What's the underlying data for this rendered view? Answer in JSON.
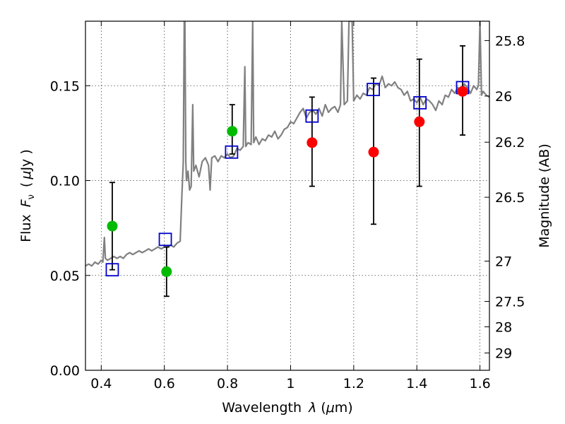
{
  "chart_data": {
    "type": "scatter",
    "xlabel_prefix": "Wavelength",
    "xlabel_symbol": "λ",
    "xlabel_units_open": "(",
    "xlabel_units_mu": "μ",
    "xlabel_units_rest": "m)",
    "ylabel_prefix": "Flux",
    "ylabel_symbol": "F",
    "ylabel_subscript": "ν",
    "ylabel_units_open": "(",
    "ylabel_units_mu": "μ",
    "ylabel_units_rest": "Jy )",
    "y2label": "Magnitude (AB)",
    "xlim": [
      0.35,
      1.63
    ],
    "ylim": [
      0.0,
      0.184
    ],
    "x_ticks": [
      0.4,
      0.6,
      0.8,
      1.0,
      1.2,
      1.4,
      1.6
    ],
    "x_tick_labels": [
      "0.4",
      "0.6",
      "0.8",
      "1",
      "1.2",
      "1.4",
      "1.6"
    ],
    "y_ticks": [
      0.0,
      0.05,
      0.1,
      0.15
    ],
    "y_tick_labels": [
      "0.00",
      "0.05",
      "0.10",
      "0.15"
    ],
    "mag_ticks": [
      25.8,
      26,
      26.2,
      26.5,
      27,
      27.5,
      28,
      29
    ],
    "mag_tick_labels": [
      "25.8",
      "26",
      "26.2",
      "26.5",
      "27",
      "27.5",
      "28",
      "29"
    ],
    "colors": {
      "spectrum": "#808080",
      "green": "#00bb00",
      "red": "#ff0000",
      "model_box": "#0000cc",
      "errorbar": "#000000"
    },
    "spectrum": [
      [
        0.35,
        0.055
      ],
      [
        0.36,
        0.056
      ],
      [
        0.37,
        0.055
      ],
      [
        0.38,
        0.057
      ],
      [
        0.39,
        0.056
      ],
      [
        0.4,
        0.058
      ],
      [
        0.405,
        0.057
      ],
      [
        0.41,
        0.07
      ],
      [
        0.413,
        0.059
      ],
      [
        0.42,
        0.058
      ],
      [
        0.43,
        0.059
      ],
      [
        0.44,
        0.06
      ],
      [
        0.45,
        0.059
      ],
      [
        0.46,
        0.06
      ],
      [
        0.47,
        0.059
      ],
      [
        0.48,
        0.061
      ],
      [
        0.49,
        0.062
      ],
      [
        0.5,
        0.061
      ],
      [
        0.51,
        0.062
      ],
      [
        0.52,
        0.063
      ],
      [
        0.53,
        0.062
      ],
      [
        0.54,
        0.063
      ],
      [
        0.55,
        0.064
      ],
      [
        0.56,
        0.063
      ],
      [
        0.57,
        0.064
      ],
      [
        0.58,
        0.065
      ],
      [
        0.59,
        0.064
      ],
      [
        0.6,
        0.065
      ],
      [
        0.61,
        0.065
      ],
      [
        0.62,
        0.066
      ],
      [
        0.63,
        0.065
      ],
      [
        0.64,
        0.067
      ],
      [
        0.65,
        0.068
      ],
      [
        0.655,
        0.09
      ],
      [
        0.66,
        0.11
      ],
      [
        0.663,
        0.184
      ],
      [
        0.665,
        0.184
      ],
      [
        0.668,
        0.11
      ],
      [
        0.67,
        0.1
      ],
      [
        0.675,
        0.105
      ],
      [
        0.68,
        0.095
      ],
      [
        0.685,
        0.097
      ],
      [
        0.69,
        0.14
      ],
      [
        0.693,
        0.105
      ],
      [
        0.7,
        0.108
      ],
      [
        0.71,
        0.102
      ],
      [
        0.72,
        0.11
      ],
      [
        0.73,
        0.112
      ],
      [
        0.74,
        0.108
      ],
      [
        0.745,
        0.095
      ],
      [
        0.75,
        0.112
      ],
      [
        0.76,
        0.113
      ],
      [
        0.77,
        0.11
      ],
      [
        0.78,
        0.113
      ],
      [
        0.79,
        0.112
      ],
      [
        0.8,
        0.114
      ],
      [
        0.81,
        0.112
      ],
      [
        0.82,
        0.113
      ],
      [
        0.83,
        0.117
      ],
      [
        0.84,
        0.116
      ],
      [
        0.85,
        0.118
      ],
      [
        0.855,
        0.16
      ],
      [
        0.858,
        0.118
      ],
      [
        0.865,
        0.12
      ],
      [
        0.875,
        0.119
      ],
      [
        0.88,
        0.184
      ],
      [
        0.883,
        0.12
      ],
      [
        0.89,
        0.123
      ],
      [
        0.9,
        0.119
      ],
      [
        0.91,
        0.122
      ],
      [
        0.92,
        0.121
      ],
      [
        0.93,
        0.124
      ],
      [
        0.94,
        0.123
      ],
      [
        0.95,
        0.126
      ],
      [
        0.96,
        0.122
      ],
      [
        0.97,
        0.124
      ],
      [
        0.98,
        0.127
      ],
      [
        0.99,
        0.128
      ],
      [
        1.0,
        0.131
      ],
      [
        1.01,
        0.13
      ],
      [
        1.02,
        0.133
      ],
      [
        1.03,
        0.136
      ],
      [
        1.04,
        0.138
      ],
      [
        1.05,
        0.133
      ],
      [
        1.06,
        0.136
      ],
      [
        1.07,
        0.137
      ],
      [
        1.08,
        0.135
      ],
      [
        1.09,
        0.138
      ],
      [
        1.1,
        0.134
      ],
      [
        1.11,
        0.14
      ],
      [
        1.12,
        0.136
      ],
      [
        1.13,
        0.138
      ],
      [
        1.14,
        0.139
      ],
      [
        1.15,
        0.136
      ],
      [
        1.158,
        0.14
      ],
      [
        1.162,
        0.184
      ],
      [
        1.17,
        0.14
      ],
      [
        1.18,
        0.142
      ],
      [
        1.185,
        0.184
      ],
      [
        1.195,
        0.184
      ],
      [
        1.2,
        0.142
      ],
      [
        1.21,
        0.145
      ],
      [
        1.22,
        0.143
      ],
      [
        1.23,
        0.146
      ],
      [
        1.24,
        0.145
      ],
      [
        1.25,
        0.149
      ],
      [
        1.26,
        0.148
      ],
      [
        1.27,
        0.151
      ],
      [
        1.28,
        0.15
      ],
      [
        1.29,
        0.155
      ],
      [
        1.3,
        0.149
      ],
      [
        1.31,
        0.151
      ],
      [
        1.32,
        0.15
      ],
      [
        1.33,
        0.152
      ],
      [
        1.34,
        0.149
      ],
      [
        1.35,
        0.148
      ],
      [
        1.36,
        0.145
      ],
      [
        1.37,
        0.147
      ],
      [
        1.38,
        0.142
      ],
      [
        1.39,
        0.143
      ],
      [
        1.4,
        0.141
      ],
      [
        1.41,
        0.144
      ],
      [
        1.42,
        0.14
      ],
      [
        1.43,
        0.143
      ],
      [
        1.44,
        0.142
      ],
      [
        1.45,
        0.14
      ],
      [
        1.46,
        0.137
      ],
      [
        1.47,
        0.142
      ],
      [
        1.48,
        0.14
      ],
      [
        1.49,
        0.145
      ],
      [
        1.5,
        0.144
      ],
      [
        1.51,
        0.148
      ],
      [
        1.52,
        0.146
      ],
      [
        1.53,
        0.149
      ],
      [
        1.54,
        0.146
      ],
      [
        1.55,
        0.151
      ],
      [
        1.56,
        0.149
      ],
      [
        1.57,
        0.146
      ],
      [
        1.58,
        0.15
      ],
      [
        1.59,
        0.148
      ],
      [
        1.595,
        0.15
      ],
      [
        1.6,
        0.184
      ],
      [
        1.605,
        0.145
      ],
      [
        1.61,
        0.147
      ],
      [
        1.62,
        0.145
      ],
      [
        1.63,
        0.144
      ]
    ],
    "green_points": [
      {
        "x": 0.435,
        "y": 0.076
      },
      {
        "x": 0.607,
        "y": 0.052
      },
      {
        "x": 0.815,
        "y": 0.126
      }
    ],
    "red_points": [
      {
        "x": 1.068,
        "y": 0.12
      },
      {
        "x": 1.263,
        "y": 0.115
      },
      {
        "x": 1.408,
        "y": 0.131
      },
      {
        "x": 1.545,
        "y": 0.147
      }
    ],
    "model_boxes": [
      {
        "x": 0.435,
        "y": 0.053
      },
      {
        "x": 0.603,
        "y": 0.069
      },
      {
        "x": 0.813,
        "y": 0.115
      },
      {
        "x": 1.068,
        "y": 0.134
      },
      {
        "x": 1.262,
        "y": 0.148
      },
      {
        "x": 1.41,
        "y": 0.141
      },
      {
        "x": 1.545,
        "y": 0.149
      }
    ],
    "error_bars": [
      {
        "x": 0.435,
        "low": 0.053,
        "high": 0.099
      },
      {
        "x": 0.607,
        "low": 0.039,
        "high": 0.065
      },
      {
        "x": 0.815,
        "low": 0.114,
        "high": 0.14
      },
      {
        "x": 1.068,
        "low": 0.097,
        "high": 0.144
      },
      {
        "x": 1.263,
        "low": 0.077,
        "high": 0.154
      },
      {
        "x": 1.408,
        "low": 0.097,
        "high": 0.164
      },
      {
        "x": 1.545,
        "low": 0.124,
        "high": 0.171
      }
    ]
  }
}
